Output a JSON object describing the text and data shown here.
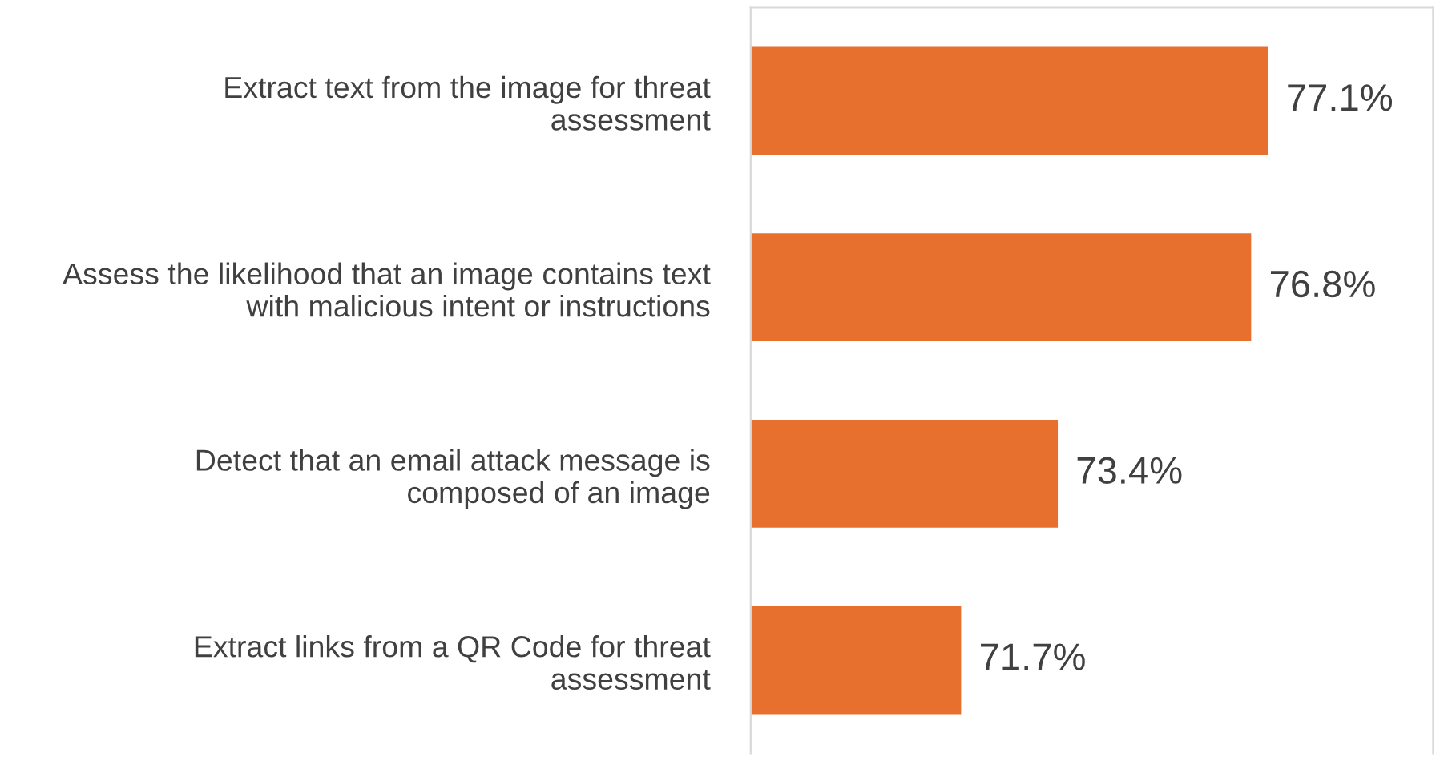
{
  "chart_data": {
    "type": "bar",
    "orientation": "horizontal",
    "categories": [
      "Extract text from the image for threat\nassessment",
      "Assess the likelihood that an image contains text\nwith malicious intent or instructions",
      "Detect that an email attack message is\ncomposed of an image",
      "Extract links from a QR Code for threat\nassessment"
    ],
    "values": [
      77.1,
      76.8,
      73.4,
      71.7
    ],
    "value_labels": [
      "77.1%",
      "76.8%",
      "73.4%",
      "71.7%"
    ],
    "color": "#e8702f",
    "xlim": [
      68,
      80
    ],
    "tick_labels": "y",
    "grid": false,
    "legend": false
  }
}
